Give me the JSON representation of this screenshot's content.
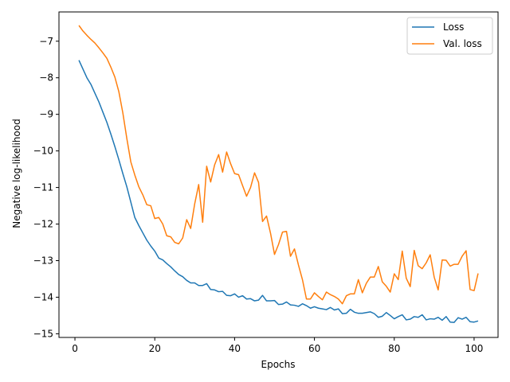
{
  "chart_data": {
    "type": "line",
    "title": "",
    "xlabel": "Epochs",
    "ylabel": "Negative log-likelihood",
    "xlim": [
      -4,
      106
    ],
    "ylim": [
      -15.1,
      -6.2
    ],
    "xticks": [
      0,
      20,
      40,
      60,
      80,
      100
    ],
    "yticks": [
      -15,
      -14,
      -13,
      -12,
      -11,
      -10,
      -9,
      -8,
      -7
    ],
    "grid": false,
    "legend_position": "top-right",
    "series": [
      {
        "name": "Loss",
        "color": "#1f77b4",
        "x": [
          1,
          2,
          3,
          4,
          5,
          6,
          7,
          8,
          9,
          10,
          11,
          12,
          13,
          14,
          15,
          16,
          17,
          18,
          19,
          20,
          21,
          22,
          23,
          24,
          25,
          26,
          27,
          28,
          29,
          30,
          31,
          32,
          33,
          34,
          35,
          36,
          37,
          38,
          39,
          40,
          41,
          42,
          43,
          44,
          45,
          46,
          47,
          48,
          49,
          50,
          51,
          52,
          53,
          54,
          55,
          56,
          57,
          58,
          59,
          60,
          61,
          62,
          63,
          64,
          65,
          66,
          67,
          68,
          69,
          70,
          71,
          72,
          73,
          74,
          75,
          76,
          77,
          78,
          79,
          80,
          81,
          82,
          83,
          84,
          85,
          86,
          87,
          88,
          89,
          90,
          91,
          92,
          93,
          94,
          95,
          96,
          97,
          98,
          99,
          100,
          101
        ],
        "values": [
          -7.52,
          -7.76,
          -8.0,
          -8.18,
          -8.42,
          -8.66,
          -8.94,
          -9.22,
          -9.54,
          -9.88,
          -10.24,
          -10.62,
          -10.98,
          -11.4,
          -11.82,
          -12.04,
          -12.24,
          -12.44,
          -12.6,
          -12.74,
          -12.93,
          -12.98,
          -13.08,
          -13.17,
          -13.28,
          -13.38,
          -13.44,
          -13.54,
          -13.61,
          -13.61,
          -13.68,
          -13.68,
          -13.63,
          -13.79,
          -13.8,
          -13.85,
          -13.84,
          -13.95,
          -13.96,
          -13.91,
          -14.0,
          -13.96,
          -14.05,
          -14.04,
          -14.1,
          -14.08,
          -13.95,
          -14.1,
          -14.1,
          -14.09,
          -14.2,
          -14.19,
          -14.13,
          -14.21,
          -14.22,
          -14.25,
          -14.18,
          -14.23,
          -14.3,
          -14.26,
          -14.3,
          -14.32,
          -14.34,
          -14.28,
          -14.35,
          -14.32,
          -14.45,
          -14.44,
          -14.33,
          -14.41,
          -14.44,
          -14.44,
          -14.42,
          -14.4,
          -14.45,
          -14.55,
          -14.52,
          -14.42,
          -14.5,
          -14.59,
          -14.53,
          -14.48,
          -14.62,
          -14.6,
          -14.53,
          -14.55,
          -14.48,
          -14.62,
          -14.59,
          -14.6,
          -14.55,
          -14.63,
          -14.53,
          -14.68,
          -14.69,
          -14.56,
          -14.6,
          -14.55,
          -14.67,
          -14.68,
          -14.65
        ]
      },
      {
        "name": "Val. loss",
        "color": "#ff7f0e",
        "x": [
          1,
          2,
          3,
          4,
          5,
          6,
          7,
          8,
          9,
          10,
          11,
          12,
          13,
          14,
          15,
          16,
          17,
          18,
          19,
          20,
          21,
          22,
          23,
          24,
          25,
          26,
          27,
          28,
          29,
          30,
          31,
          32,
          33,
          34,
          35,
          36,
          37,
          38,
          39,
          40,
          41,
          42,
          43,
          44,
          45,
          46,
          47,
          48,
          49,
          50,
          51,
          52,
          53,
          54,
          55,
          56,
          57,
          58,
          59,
          60,
          61,
          62,
          63,
          64,
          65,
          66,
          67,
          68,
          69,
          70,
          71,
          72,
          73,
          74,
          75,
          76,
          77,
          78,
          79,
          80,
          81,
          82,
          83,
          84,
          85,
          86,
          87,
          88,
          89,
          90,
          91,
          92,
          93,
          94,
          95,
          96,
          97,
          98,
          99,
          100,
          101
        ],
        "values": [
          -6.57,
          -6.72,
          -6.84,
          -6.95,
          -7.05,
          -7.18,
          -7.32,
          -7.47,
          -7.71,
          -7.98,
          -8.38,
          -8.96,
          -9.66,
          -10.3,
          -10.66,
          -10.98,
          -11.2,
          -11.47,
          -11.5,
          -11.85,
          -11.82,
          -12.0,
          -12.32,
          -12.35,
          -12.5,
          -12.54,
          -12.38,
          -11.88,
          -12.12,
          -11.45,
          -10.92,
          -11.95,
          -10.42,
          -10.85,
          -10.38,
          -10.1,
          -10.58,
          -10.03,
          -10.35,
          -10.62,
          -10.65,
          -10.95,
          -11.24,
          -11.0,
          -10.6,
          -10.86,
          -11.93,
          -11.78,
          -12.25,
          -12.83,
          -12.56,
          -12.22,
          -12.2,
          -12.88,
          -12.68,
          -13.12,
          -13.52,
          -14.05,
          -14.05,
          -13.88,
          -13.98,
          -14.07,
          -13.86,
          -13.93,
          -13.98,
          -14.05,
          -14.18,
          -13.96,
          -13.91,
          -13.91,
          -13.52,
          -13.88,
          -13.62,
          -13.45,
          -13.45,
          -13.16,
          -13.58,
          -13.7,
          -13.86,
          -13.36,
          -13.52,
          -12.74,
          -13.48,
          -13.71,
          -12.72,
          -13.14,
          -13.22,
          -13.06,
          -12.84,
          -13.45,
          -13.8,
          -12.98,
          -12.99,
          -13.15,
          -13.1,
          -13.1,
          -12.88,
          -12.73,
          -13.79,
          -13.82,
          -13.35
        ]
      }
    ]
  }
}
